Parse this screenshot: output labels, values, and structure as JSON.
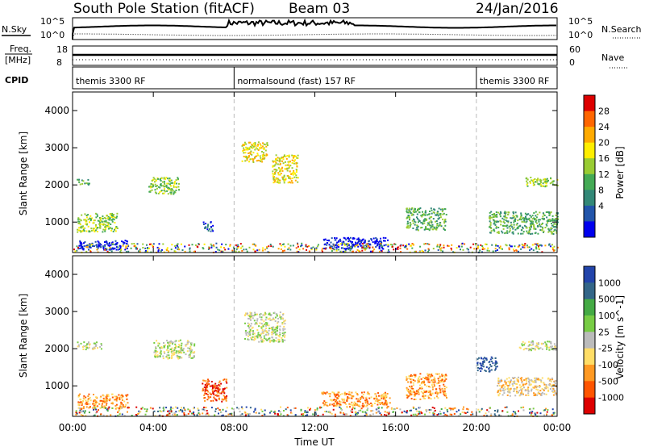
{
  "header": {
    "station": "South Pole Station (fitACF)",
    "beam": "Beam 03",
    "date": "24/Jan/2016"
  },
  "strip_labels": {
    "nsky": "N.Sky",
    "nsky_ticks": [
      "10^5",
      "10^0"
    ],
    "nsearch": "N.Search",
    "nsearch_ticks": [
      "10^5",
      "10^0"
    ],
    "freq_line1": "Freq.",
    "freq_line2": "[MHz]",
    "freq_ticks": [
      "18",
      "8"
    ],
    "nave": "Nave",
    "nave_ticks": [
      "60",
      "0"
    ],
    "cpid": "CPID"
  },
  "cpid_segments": [
    {
      "label": "themis 3300 RF",
      "start_hour": 0,
      "end_hour": 8
    },
    {
      "label": "normalsound (fast) 157 RF",
      "start_hour": 8,
      "end_hour": 20
    },
    {
      "label": "themis 3300 RF",
      "start_hour": 20,
      "end_hour": 24
    }
  ],
  "chart_data": [
    {
      "type": "heatmap",
      "name": "power",
      "ylabel": "Slant Range [km]",
      "xlabel": "",
      "xlim": [
        0,
        24
      ],
      "ylim": [
        180,
        4500
      ],
      "x_ticks": [
        {
          "value": 0,
          "label": "00:00"
        },
        {
          "value": 4,
          "label": "04:00"
        },
        {
          "value": 8,
          "label": "08:00"
        },
        {
          "value": 12,
          "label": "12:00"
        },
        {
          "value": 16,
          "label": "16:00"
        },
        {
          "value": 20,
          "label": "20:00"
        },
        {
          "value": 24,
          "label": "00:00"
        }
      ],
      "y_ticks": [
        1000,
        2000,
        3000,
        4000
      ],
      "colorbar": {
        "label": "Power [dB]",
        "ticks": [
          "28",
          "24",
          "20",
          "16",
          "12",
          "8",
          "4"
        ],
        "colors": [
          "#dd0000",
          "#ff6600",
          "#ffaa00",
          "#ffee00",
          "#99cc33",
          "#44aa55",
          "#338877",
          "#2255aa",
          "#0000ee"
        ]
      },
      "regions": [
        {
          "hour": 0.5,
          "range": 2100,
          "w": 0.6,
          "h": 150,
          "level": 5
        },
        {
          "hour": 1.2,
          "range": 1000,
          "w": 2.0,
          "h": 500,
          "level": 4
        },
        {
          "hour": 1.5,
          "range": 400,
          "w": 2.5,
          "h": 250,
          "level": 8
        },
        {
          "hour": 4.5,
          "range": 2000,
          "w": 1.5,
          "h": 450,
          "level": 4
        },
        {
          "hour": 6.7,
          "range": 900,
          "w": 0.5,
          "h": 250,
          "level": 7
        },
        {
          "hour": 9.0,
          "range": 2900,
          "w": 1.3,
          "h": 550,
          "level": 3
        },
        {
          "hour": 10.5,
          "range": 2450,
          "w": 1.3,
          "h": 750,
          "level": 3
        },
        {
          "hour": 14.0,
          "range": 450,
          "w": 3.2,
          "h": 300,
          "level": 8
        },
        {
          "hour": 17.5,
          "range": 1100,
          "w": 2.0,
          "h": 600,
          "level": 5
        },
        {
          "hour": 22.3,
          "range": 1000,
          "w": 3.4,
          "h": 600,
          "level": 5
        },
        {
          "hour": 23.2,
          "range": 2100,
          "w": 1.6,
          "h": 250,
          "level": 4
        }
      ]
    },
    {
      "type": "heatmap",
      "name": "velocity",
      "ylabel": "Slant Range [km]",
      "xlabel": "Time UT",
      "xlim": [
        0,
        24
      ],
      "ylim": [
        180,
        4500
      ],
      "x_ticks": [
        {
          "value": 0,
          "label": "00:00"
        },
        {
          "value": 4,
          "label": "04:00"
        },
        {
          "value": 8,
          "label": "08:00"
        },
        {
          "value": 12,
          "label": "12:00"
        },
        {
          "value": 16,
          "label": "16:00"
        },
        {
          "value": 20,
          "label": "20:00"
        },
        {
          "value": 24,
          "label": "00:00"
        }
      ],
      "y_ticks": [
        1000,
        2000,
        3000,
        4000
      ],
      "colorbar": {
        "label": "Velocity [m s^-1]",
        "ticks": [
          "1000",
          "500",
          "100",
          "25",
          "-25",
          "-100",
          "-500",
          "-1000"
        ],
        "colors": [
          "#2244aa",
          "#336688",
          "#44aa44",
          "#77cc44",
          "#bbbbbb",
          "#ffdd66",
          "#ff9922",
          "#ff5500",
          "#dd0000"
        ]
      },
      "regions": [
        {
          "hour": 0.8,
          "range": 2100,
          "w": 1.2,
          "h": 200,
          "level": 4
        },
        {
          "hour": 1.5,
          "range": 600,
          "w": 2.5,
          "h": 400,
          "level": 6
        },
        {
          "hour": 5.0,
          "range": 2000,
          "w": 2.0,
          "h": 500,
          "level": 4
        },
        {
          "hour": 7.0,
          "range": 900,
          "w": 1.2,
          "h": 600,
          "level": 7
        },
        {
          "hour": 9.5,
          "range": 2600,
          "w": 2.0,
          "h": 800,
          "level": 4
        },
        {
          "hour": 14.0,
          "range": 650,
          "w": 3.4,
          "h": 400,
          "level": 6
        },
        {
          "hour": 17.5,
          "range": 1000,
          "w": 2.0,
          "h": 700,
          "level": 6
        },
        {
          "hour": 20.5,
          "range": 1600,
          "w": 1.0,
          "h": 400,
          "level": 0
        },
        {
          "hour": 22.5,
          "range": 1000,
          "w": 3.0,
          "h": 500,
          "level": 5
        },
        {
          "hour": 23.0,
          "range": 2100,
          "w": 1.8,
          "h": 250,
          "level": 4
        }
      ]
    }
  ]
}
